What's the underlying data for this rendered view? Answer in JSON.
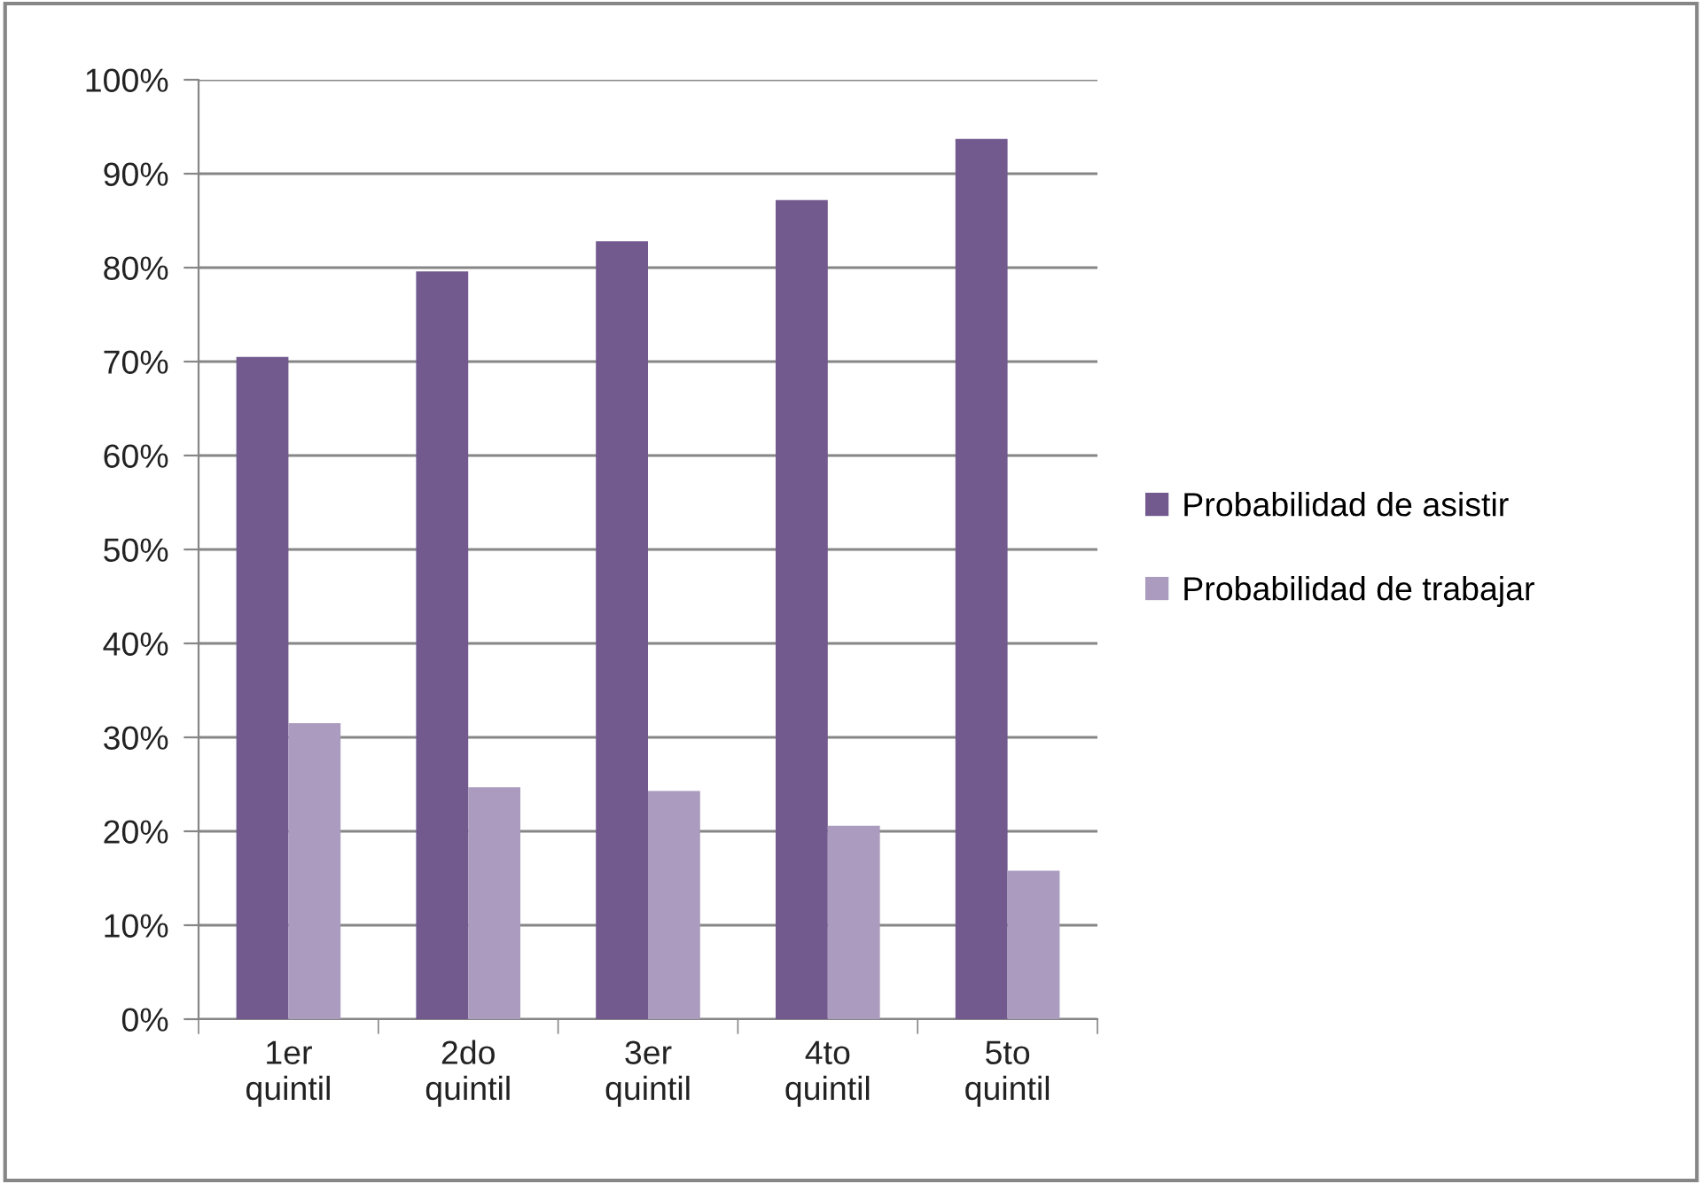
{
  "chart_data": {
    "type": "bar",
    "categories": [
      "1er\nquintil",
      "2do\nquintil",
      "3er\nquintil",
      "4to\nquintil",
      "5to\nquintil"
    ],
    "series": [
      {
        "name": "Probabilidad de asistir",
        "color": "#725a8f",
        "values": [
          70.5,
          79.6,
          82.8,
          87.2,
          93.7
        ]
      },
      {
        "name": "Probabilidad de trabajar",
        "color": "#aa9bbf",
        "values": [
          31.5,
          24.7,
          24.3,
          20.6,
          15.8
        ]
      }
    ],
    "ylim": [
      0,
      100
    ],
    "yticks": [
      {
        "value": 0,
        "label": "0%"
      },
      {
        "value": 10,
        "label": "10%"
      },
      {
        "value": 20,
        "label": "20%"
      },
      {
        "value": 30,
        "label": "30%"
      },
      {
        "value": 40,
        "label": "40%"
      },
      {
        "value": 50,
        "label": "50%"
      },
      {
        "value": 60,
        "label": "60%"
      },
      {
        "value": 70,
        "label": "70%"
      },
      {
        "value": 80,
        "label": "80%"
      },
      {
        "value": 90,
        "label": "90%"
      },
      {
        "value": 100,
        "label": "100%"
      }
    ],
    "grid": "y",
    "legend": "right"
  }
}
